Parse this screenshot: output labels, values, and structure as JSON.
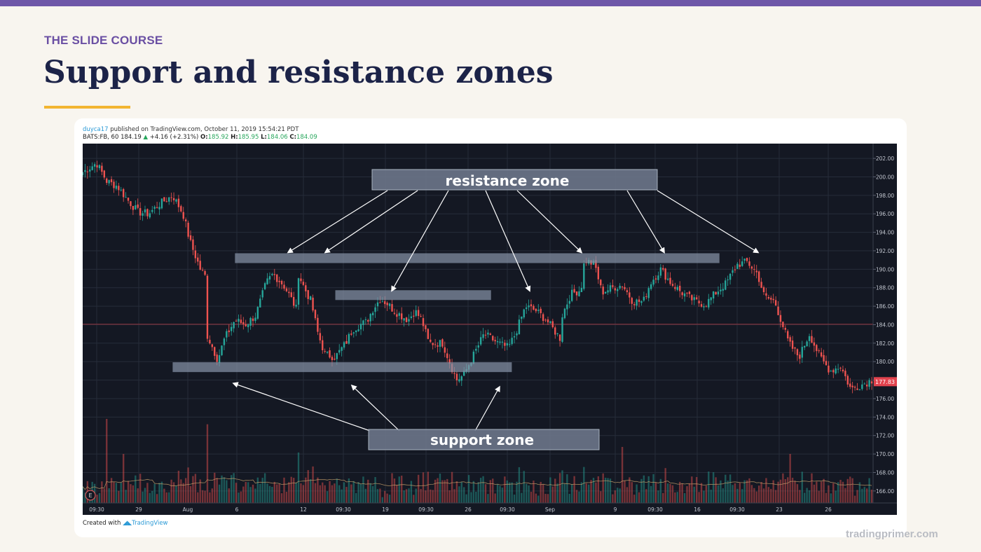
{
  "slide": {
    "course": "THE SLIDE COURSE",
    "title": "Support and resistance zones",
    "brand": "tradingprimer.com"
  },
  "snapshot": {
    "user": "duyca17",
    "published": " published on TradingView.com, October 11, 2019 15:54:21 PDT",
    "symbol": "BATS:FB, 60",
    "last": "184.19",
    "change": "+4.16 (+2.31%)",
    "open_label": "O:",
    "open": "185.92",
    "high_label": "H:",
    "high": "185.95",
    "low_label": "L:",
    "low": "184.06",
    "close_label": "C:",
    "close": "184.09",
    "created_with": "Created with",
    "tradingview": "TradingView"
  },
  "colors": {
    "chart_bg": "#141823",
    "up": "#26a69a",
    "down": "#ef5350",
    "zone": "#8592a6",
    "price_tag": "#e2434e",
    "slide_accent": "#6e57a8",
    "underline": "#f2b531",
    "title": "#1c2348"
  },
  "chart_data": {
    "type": "candlestick",
    "x_ticks": [
      "09:30",
      "29",
      "Aug",
      "6",
      "12",
      "09:30",
      "19",
      "09:30",
      "26",
      "09:30",
      "Sep",
      "9",
      "09:30",
      "16",
      "09:30",
      "23",
      "26"
    ],
    "y_ticks": [
      "202.00",
      "200.00",
      "198.00",
      "196.00",
      "194.00",
      "192.00",
      "190.00",
      "188.00",
      "186.00",
      "184.00",
      "182.00",
      "180.00",
      "178.00",
      "176.00",
      "174.00",
      "172.00",
      "170.00",
      "168.00",
      "166.00"
    ],
    "ylim": [
      164.7,
      203.6
    ],
    "current_price": "177.83",
    "price_line": 184.05,
    "close_path": [
      [
        0,
        200.5
      ],
      [
        0.02,
        201.5
      ],
      [
        0.035,
        199.5
      ],
      [
        0.05,
        199
      ],
      [
        0.065,
        197.5
      ],
      [
        0.08,
        196.2
      ],
      [
        0.095,
        196
      ],
      [
        0.11,
        197
      ],
      [
        0.13,
        198
      ],
      [
        0.145,
        196
      ],
      [
        0.155,
        193
      ],
      [
        0.17,
        190
      ],
      [
        0.18,
        188.9
      ],
      [
        0.17,
        184.5
      ],
      [
        0.185,
        182
      ],
      [
        0.195,
        180.2
      ],
      [
        0.205,
        182.5
      ],
      [
        0.22,
        184.5
      ],
      [
        0.235,
        184
      ],
      [
        0.25,
        185
      ],
      [
        0.265,
        188.5
      ],
      [
        0.275,
        189.5
      ],
      [
        0.29,
        188.3
      ],
      [
        0.3,
        187
      ],
      [
        0.31,
        185.5
      ],
      [
        0.3,
        188
      ],
      [
        0.31,
        189.8
      ],
      [
        0.32,
        188
      ],
      [
        0.33,
        186.5
      ],
      [
        0.34,
        183
      ],
      [
        0.35,
        180.8
      ],
      [
        0.365,
        180.5
      ],
      [
        0.38,
        182
      ],
      [
        0.39,
        183.5
      ],
      [
        0.4,
        184
      ],
      [
        0.41,
        184.3
      ],
      [
        0.42,
        185.8
      ],
      [
        0.43,
        186.8
      ],
      [
        0.44,
        186.3
      ],
      [
        0.45,
        185.5
      ],
      [
        0.46,
        185
      ],
      [
        0.47,
        184.5
      ],
      [
        0.48,
        185.5
      ],
      [
        0.49,
        184.5
      ],
      [
        0.5,
        182
      ],
      [
        0.52,
        182
      ],
      [
        0.54,
        178
      ],
      [
        0.55,
        178.5
      ],
      [
        0.56,
        180
      ],
      [
        0.57,
        181.5
      ],
      [
        0.58,
        183
      ],
      [
        0.6,
        182
      ],
      [
        0.615,
        181.5
      ],
      [
        0.625,
        183
      ],
      [
        0.64,
        186
      ],
      [
        0.655,
        185.5
      ],
      [
        0.67,
        184.5
      ],
      [
        0.68,
        183.5
      ],
      [
        0.69,
        182.5
      ],
      [
        0.69,
        184.5
      ],
      [
        0.705,
        187.3
      ],
      [
        0.72,
        187.8
      ],
      [
        0.725,
        191
      ],
      [
        0.74,
        190.5
      ],
      [
        0.75,
        187.5
      ],
      [
        0.765,
        188
      ],
      [
        0.78,
        188.3
      ],
      [
        0.795,
        186.5
      ],
      [
        0.81,
        186.5
      ],
      [
        0.82,
        188.5
      ],
      [
        0.835,
        190
      ],
      [
        0.85,
        188.5
      ],
      [
        0.865,
        187.5
      ],
      [
        0.885,
        186.5
      ],
      [
        0.9,
        186.2
      ],
      [
        0.915,
        187.5
      ],
      [
        0.93,
        188.5
      ],
      [
        0.945,
        190.5
      ],
      [
        0.96,
        190.8
      ],
      [
        0.975,
        189.5
      ],
      [
        0.985,
        187
      ],
      [
        1.0,
        186.5
      ],
      [
        1.02,
        182
      ],
      [
        1.035,
        180.5
      ],
      [
        1.05,
        183
      ],
      [
        1.065,
        180.5
      ],
      [
        1.08,
        179
      ],
      [
        1.095,
        179.5
      ],
      [
        1.11,
        177
      ],
      [
        1.125,
        177.5
      ],
      [
        1.14,
        178
      ]
    ],
    "zones": [
      {
        "y": 191.2,
        "x_range": [
          0.22,
          0.92
        ]
      },
      {
        "y": 187.2,
        "x_range": [
          0.365,
          0.59
        ]
      },
      {
        "y": 179.4,
        "x_range": [
          0.13,
          0.62
        ]
      }
    ],
    "annotations": [
      {
        "text": "resistance zone",
        "kind": "label"
      },
      {
        "text": "support zone",
        "kind": "label"
      }
    ]
  }
}
